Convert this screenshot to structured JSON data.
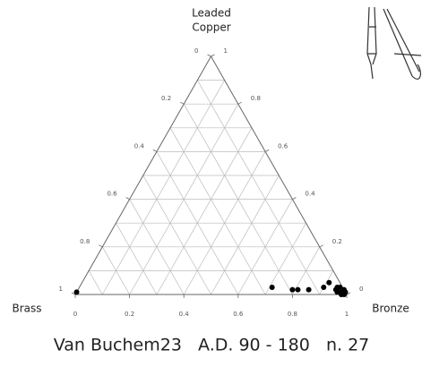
{
  "chart_data": {
    "type": "ternary",
    "top_label": [
      "Leaded",
      "Copper"
    ],
    "left_label": "Brass",
    "right_label": "Bronze",
    "caption": "Van Buchem23   A.D. 90 - 180   n. 27",
    "ticks": [
      0,
      0.2,
      0.4,
      0.6,
      0.8,
      1
    ],
    "grid": true,
    "grid_step": 0.1,
    "color": "#000000",
    "points": [
      [
        0,
        0.01,
        0.99
      ],
      [
        0.71,
        0.03,
        0.26
      ],
      [
        0.79,
        0.02,
        0.19
      ],
      [
        0.81,
        0.02,
        0.17
      ],
      [
        0.85,
        0.02,
        0.13
      ],
      [
        0.9,
        0.03,
        0.07
      ],
      [
        0.91,
        0.05,
        0.04
      ],
      [
        0.95,
        0.02,
        0.03
      ],
      [
        0.96,
        0.01,
        0.03
      ],
      [
        0.98,
        0,
        0.02
      ],
      [
        0.99,
        0,
        0.01
      ],
      [
        0.99,
        0.01,
        0
      ],
      [
        0.96,
        0.03,
        0.01
      ],
      [
        0.95,
        0.03,
        0.02
      ],
      [
        0.98,
        0.02,
        0
      ],
      [
        0.97,
        0.01,
        0.02
      ]
    ]
  }
}
